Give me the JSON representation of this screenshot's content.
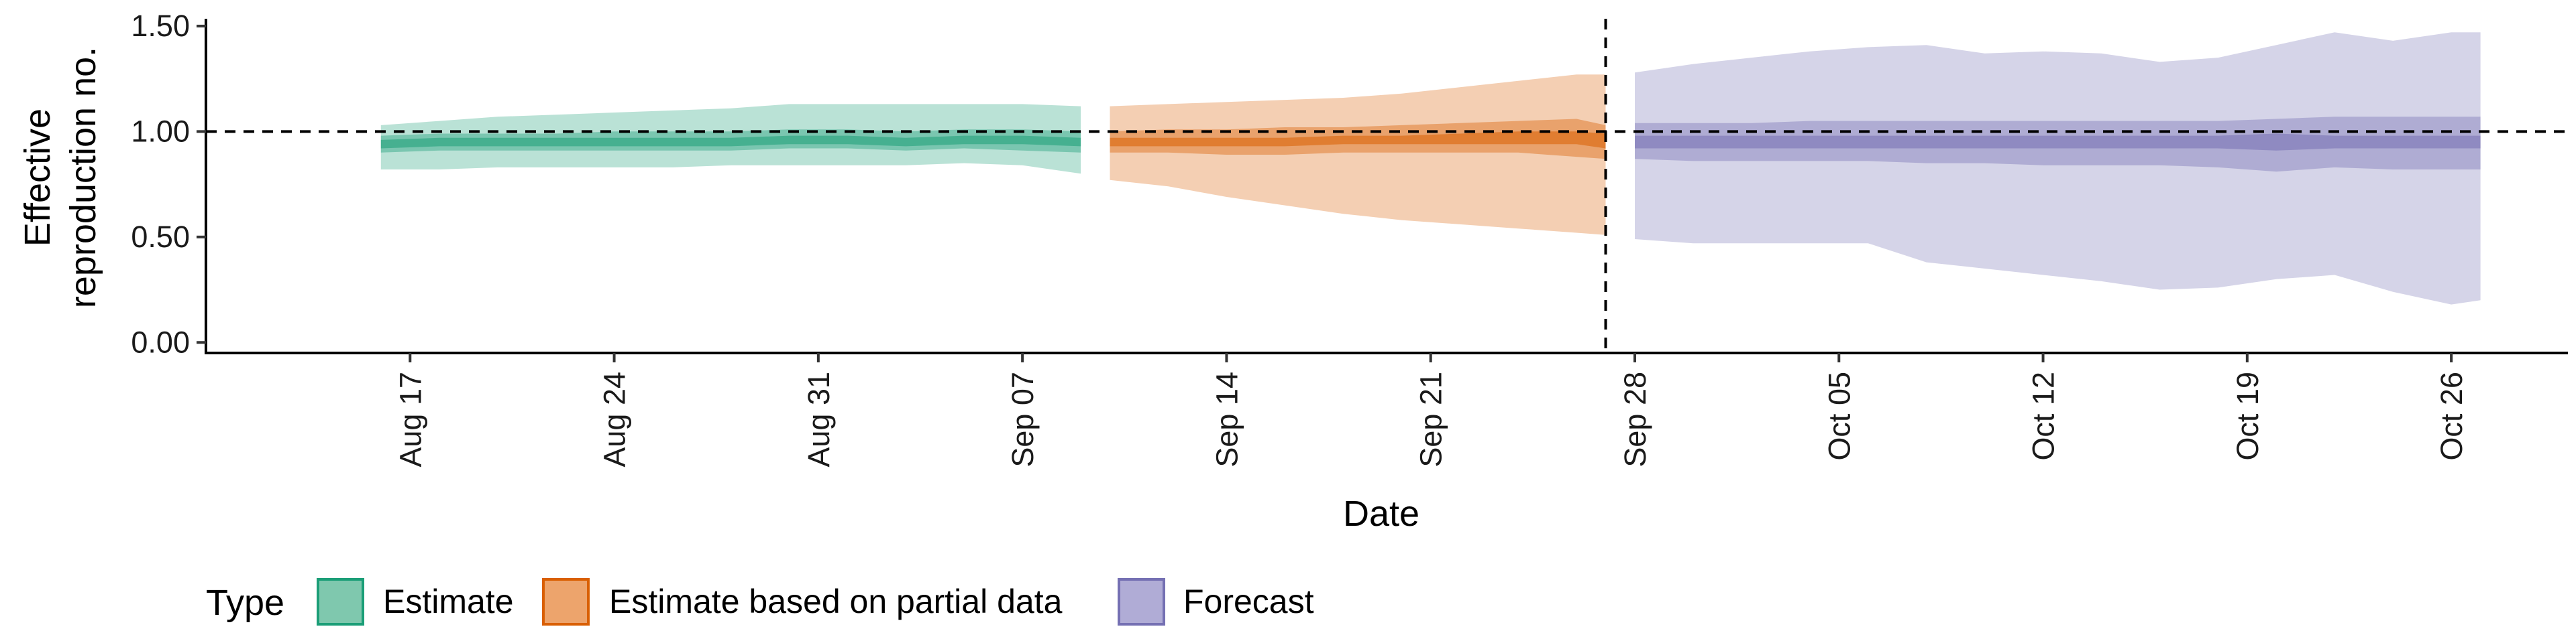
{
  "chart_data": {
    "type": "area",
    "title": "",
    "xlabel": "Date",
    "ylabel_lines": [
      "Effective",
      "reproduction no."
    ],
    "x_type": "date",
    "xlim": [
      "2020-08-10",
      "2020-10-30"
    ],
    "x_ticks": [
      {
        "date": "2020-08-17",
        "label": "Aug 17"
      },
      {
        "date": "2020-08-24",
        "label": "Aug 24"
      },
      {
        "date": "2020-08-31",
        "label": "Aug 31"
      },
      {
        "date": "2020-09-07",
        "label": "Sep 07"
      },
      {
        "date": "2020-09-14",
        "label": "Sep 14"
      },
      {
        "date": "2020-09-21",
        "label": "Sep 21"
      },
      {
        "date": "2020-09-28",
        "label": "Sep 28"
      },
      {
        "date": "2020-10-05",
        "label": "Oct 05"
      },
      {
        "date": "2020-10-12",
        "label": "Oct 12"
      },
      {
        "date": "2020-10-19",
        "label": "Oct 19"
      },
      {
        "date": "2020-10-26",
        "label": "Oct 26"
      }
    ],
    "ylim": [
      -0.05,
      1.56
    ],
    "y_ticks": [
      {
        "value": 0.0,
        "label": "0.00"
      },
      {
        "value": 0.5,
        "label": "0.50"
      },
      {
        "value": 1.0,
        "label": "1.00"
      },
      {
        "value": 1.5,
        "label": "1.50"
      }
    ],
    "reference_hline": 1.0,
    "reference_vline": "2020-09-27",
    "grid": false,
    "legend": {
      "title": "Type",
      "position": "bottom-left",
      "entries": [
        "Estimate",
        "Estimate based on partial data",
        "Forecast"
      ]
    },
    "series": [
      {
        "name": "Estimate",
        "color": "#1b9e77",
        "fill": "#7fc8ae",
        "x": [
          "2020-08-16",
          "2020-08-18",
          "2020-08-20",
          "2020-08-22",
          "2020-08-24",
          "2020-08-26",
          "2020-08-28",
          "2020-08-30",
          "2020-09-01",
          "2020-09-03",
          "2020-09-05",
          "2020-09-07",
          "2020-09-09"
        ],
        "median": [
          0.94,
          0.95,
          0.95,
          0.95,
          0.95,
          0.95,
          0.95,
          0.96,
          0.96,
          0.95,
          0.96,
          0.96,
          0.95
        ],
        "lower_20": [
          0.92,
          0.93,
          0.93,
          0.93,
          0.93,
          0.93,
          0.93,
          0.94,
          0.94,
          0.93,
          0.94,
          0.94,
          0.93
        ],
        "upper_20": [
          0.96,
          0.97,
          0.97,
          0.97,
          0.97,
          0.97,
          0.97,
          0.98,
          0.98,
          0.97,
          0.98,
          0.98,
          0.97
        ],
        "lower_50": [
          0.9,
          0.91,
          0.91,
          0.91,
          0.91,
          0.91,
          0.91,
          0.92,
          0.92,
          0.91,
          0.92,
          0.91,
          0.9
        ],
        "upper_50": [
          0.98,
          0.99,
          0.99,
          0.99,
          1.0,
          1.0,
          1.0,
          1.01,
          1.01,
          1.0,
          1.01,
          1.01,
          1.0
        ],
        "lower_90": [
          0.82,
          0.82,
          0.83,
          0.83,
          0.83,
          0.83,
          0.84,
          0.84,
          0.84,
          0.84,
          0.85,
          0.84,
          0.8
        ],
        "upper_90": [
          1.03,
          1.05,
          1.07,
          1.08,
          1.09,
          1.1,
          1.11,
          1.13,
          1.13,
          1.13,
          1.13,
          1.13,
          1.12
        ]
      },
      {
        "name": "Estimate based on partial data",
        "color": "#d95f02",
        "fill": "#eda46c",
        "x": [
          "2020-09-10",
          "2020-09-12",
          "2020-09-14",
          "2020-09-16",
          "2020-09-18",
          "2020-09-20",
          "2020-09-22",
          "2020-09-24",
          "2020-09-26",
          "2020-09-27"
        ],
        "median": [
          0.95,
          0.95,
          0.95,
          0.95,
          0.96,
          0.96,
          0.96,
          0.97,
          0.97,
          0.96
        ],
        "lower_20": [
          0.93,
          0.93,
          0.93,
          0.93,
          0.94,
          0.94,
          0.94,
          0.94,
          0.94,
          0.92
        ],
        "upper_20": [
          0.97,
          0.97,
          0.97,
          0.97,
          0.98,
          0.98,
          0.99,
          1.0,
          1.0,
          0.99
        ],
        "lower_50": [
          0.9,
          0.9,
          0.89,
          0.89,
          0.9,
          0.9,
          0.9,
          0.9,
          0.88,
          0.87
        ],
        "upper_50": [
          1.0,
          1.01,
          1.01,
          1.02,
          1.02,
          1.03,
          1.04,
          1.05,
          1.06,
          1.03
        ],
        "lower_90": [
          0.77,
          0.74,
          0.69,
          0.65,
          0.61,
          0.58,
          0.56,
          0.54,
          0.52,
          0.51
        ],
        "upper_90": [
          1.12,
          1.13,
          1.14,
          1.15,
          1.16,
          1.18,
          1.21,
          1.24,
          1.27,
          1.27
        ]
      },
      {
        "name": "Forecast",
        "color": "#7570b3",
        "fill": "#b0acd6",
        "x": [
          "2020-09-28",
          "2020-09-30",
          "2020-10-02",
          "2020-10-04",
          "2020-10-06",
          "2020-10-08",
          "2020-10-10",
          "2020-10-12",
          "2020-10-14",
          "2020-10-16",
          "2020-10-18",
          "2020-10-20",
          "2020-10-22",
          "2020-10-24",
          "2020-10-26",
          "2020-10-27"
        ],
        "median": [
          0.95,
          0.95,
          0.95,
          0.95,
          0.95,
          0.95,
          0.95,
          0.95,
          0.95,
          0.95,
          0.95,
          0.95,
          0.95,
          0.95,
          0.95,
          0.95
        ],
        "lower_20": [
          0.92,
          0.92,
          0.92,
          0.92,
          0.92,
          0.92,
          0.92,
          0.92,
          0.92,
          0.92,
          0.92,
          0.91,
          0.92,
          0.92,
          0.92,
          0.92
        ],
        "upper_20": [
          0.98,
          0.98,
          0.98,
          0.98,
          0.98,
          0.98,
          0.98,
          0.98,
          0.98,
          0.98,
          0.98,
          0.99,
          0.98,
          0.98,
          0.98,
          0.98
        ],
        "lower_50": [
          0.87,
          0.86,
          0.86,
          0.86,
          0.86,
          0.85,
          0.85,
          0.84,
          0.84,
          0.84,
          0.83,
          0.81,
          0.83,
          0.82,
          0.82,
          0.82
        ],
        "upper_50": [
          1.04,
          1.04,
          1.04,
          1.05,
          1.05,
          1.05,
          1.05,
          1.05,
          1.05,
          1.05,
          1.05,
          1.06,
          1.07,
          1.07,
          1.07,
          1.07
        ],
        "lower_90": [
          0.49,
          0.47,
          0.47,
          0.47,
          0.47,
          0.38,
          0.35,
          0.32,
          0.29,
          0.25,
          0.26,
          0.3,
          0.32,
          0.24,
          0.18,
          0.2
        ],
        "upper_90": [
          1.28,
          1.32,
          1.35,
          1.38,
          1.4,
          1.41,
          1.37,
          1.38,
          1.37,
          1.33,
          1.35,
          1.41,
          1.47,
          1.43,
          1.47,
          1.47
        ]
      }
    ]
  }
}
